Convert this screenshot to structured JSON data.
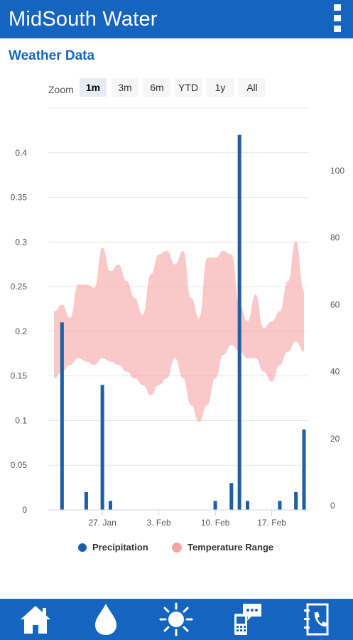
{
  "app": {
    "title": "MidSouth Water"
  },
  "page": {
    "title": "Weather Data"
  },
  "zoom": {
    "label": "Zoom",
    "options": [
      "1m",
      "3m",
      "6m",
      "YTD",
      "1y",
      "All"
    ],
    "selected": "1m"
  },
  "colors": {
    "primary": "#1565c0",
    "precipitation": "#1a5fa8",
    "temperature": "#f7a3a3"
  },
  "chart_data": {
    "type": "bar+arearange",
    "x_range": [
      "2017-01-21",
      "2017-02-21"
    ],
    "x_ticks": [
      {
        "date": "2017-01-27",
        "label": "27. Jan"
      },
      {
        "date": "2017-02-03",
        "label": "3. Feb"
      },
      {
        "date": "2017-02-10",
        "label": "10. Feb"
      },
      {
        "date": "2017-02-17",
        "label": "17. Feb"
      }
    ],
    "y_left": {
      "min": 0,
      "max": 0.45,
      "ticks": [
        "0",
        "0.05",
        "0.1",
        "0.15",
        "0.2",
        "0.25",
        "0.3",
        "0.35",
        "0.4"
      ]
    },
    "y_right": {
      "min": 0,
      "max": 100,
      "ticks": [
        "0",
        "20",
        "40",
        "60",
        "80",
        "100"
      ]
    },
    "grid": true,
    "legend": {
      "position": "bottom",
      "items": [
        "Precipitation",
        "Temperature Range"
      ]
    },
    "series": [
      {
        "name": "Precipitation",
        "type": "bar",
        "axis": "left",
        "points": [
          {
            "date": "2017-01-22",
            "value": 0.21
          },
          {
            "date": "2017-01-25",
            "value": 0.02
          },
          {
            "date": "2017-01-27",
            "value": 0.14
          },
          {
            "date": "2017-01-28",
            "value": 0.01
          },
          {
            "date": "2017-02-10",
            "value": 0.01
          },
          {
            "date": "2017-02-12",
            "value": 0.03
          },
          {
            "date": "2017-02-13",
            "value": 0.42
          },
          {
            "date": "2017-02-14",
            "value": 0.01
          },
          {
            "date": "2017-02-18",
            "value": 0.01
          },
          {
            "date": "2017-02-20",
            "value": 0.02
          },
          {
            "date": "2017-02-21",
            "value": 0.09
          }
        ]
      },
      {
        "name": "Temperature Range",
        "type": "arearange",
        "axis": "right",
        "points": [
          {
            "date": "2017-01-21",
            "low": 38,
            "high": 58
          },
          {
            "date": "2017-01-22",
            "low": 40,
            "high": 60
          },
          {
            "date": "2017-01-23",
            "low": 42,
            "high": 56
          },
          {
            "date": "2017-01-24",
            "low": 44,
            "high": 66
          },
          {
            "date": "2017-01-25",
            "low": 43,
            "high": 66
          },
          {
            "date": "2017-01-26",
            "low": 42,
            "high": 65
          },
          {
            "date": "2017-01-27",
            "low": 44,
            "high": 77
          },
          {
            "date": "2017-01-28",
            "low": 43,
            "high": 70
          },
          {
            "date": "2017-01-29",
            "low": 42,
            "high": 72
          },
          {
            "date": "2017-01-30",
            "low": 40,
            "high": 67
          },
          {
            "date": "2017-01-31",
            "low": 38,
            "high": 62
          },
          {
            "date": "2017-02-01",
            "low": 36,
            "high": 57
          },
          {
            "date": "2017-02-02",
            "low": 33,
            "high": 69
          },
          {
            "date": "2017-02-03",
            "low": 36,
            "high": 75
          },
          {
            "date": "2017-02-04",
            "low": 38,
            "high": 76
          },
          {
            "date": "2017-02-05",
            "low": 44,
            "high": 72
          },
          {
            "date": "2017-02-06",
            "low": 38,
            "high": 76
          },
          {
            "date": "2017-02-07",
            "low": 30,
            "high": 62
          },
          {
            "date": "2017-02-08",
            "low": 25,
            "high": 56
          },
          {
            "date": "2017-02-09",
            "low": 30,
            "high": 74
          },
          {
            "date": "2017-02-10",
            "low": 38,
            "high": 74
          },
          {
            "date": "2017-02-11",
            "low": 45,
            "high": 76
          },
          {
            "date": "2017-02-12",
            "low": 48,
            "high": 75
          },
          {
            "date": "2017-02-13",
            "low": 46,
            "high": 60
          },
          {
            "date": "2017-02-14",
            "low": 44,
            "high": 55
          },
          {
            "date": "2017-02-15",
            "low": 44,
            "high": 63
          },
          {
            "date": "2017-02-16",
            "low": 40,
            "high": 53
          },
          {
            "date": "2017-02-17",
            "low": 37,
            "high": 55
          },
          {
            "date": "2017-02-18",
            "low": 42,
            "high": 58
          },
          {
            "date": "2017-02-19",
            "low": 46,
            "high": 67
          },
          {
            "date": "2017-02-20",
            "low": 49,
            "high": 79
          },
          {
            "date": "2017-02-21",
            "low": 46,
            "high": 64
          }
        ]
      }
    ]
  },
  "bottom_nav": [
    {
      "icon": "home-icon"
    },
    {
      "icon": "water-drop-icon"
    },
    {
      "icon": "sun-icon"
    },
    {
      "icon": "phone-chat-icon"
    },
    {
      "icon": "contact-book-icon"
    }
  ]
}
